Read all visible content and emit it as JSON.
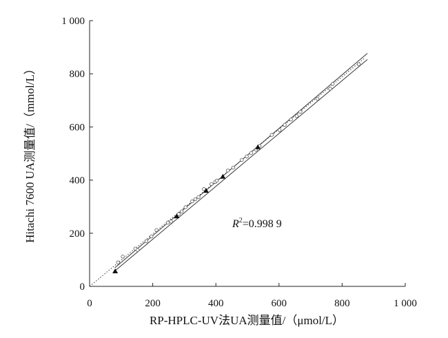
{
  "chart_data": {
    "type": "scatter",
    "title": "",
    "xlabel": "RP-HPLC-UV法UA测量值/（μmol/L）",
    "ylabel": "Hitachi 7600 UA测量值/（mmol/L）",
    "xlim": [
      0,
      1000
    ],
    "ylim": [
      0,
      1000
    ],
    "x_ticks": [
      0,
      200,
      400,
      600,
      800,
      1000
    ],
    "y_ticks": [
      0,
      200,
      400,
      600,
      800,
      1000
    ],
    "x_tick_labels": [
      "0",
      "200",
      "400",
      "600",
      "800",
      "1 000"
    ],
    "y_tick_labels": [
      "0",
      "200",
      "400",
      "600",
      "800",
      "1 000"
    ],
    "annotation": {
      "prefix": "R",
      "sup": "2",
      "value": "=0.998 9"
    },
    "grid": false,
    "legend": "none",
    "fit_line": {
      "style": "dotted",
      "x": [
        0,
        870
      ],
      "y": [
        0,
        858
      ]
    },
    "upper_limit": {
      "style": "solid",
      "x": [
        80,
        880
      ],
      "y": [
        70,
        877
      ]
    },
    "lower_limit": {
      "style": "solid",
      "x": [
        80,
        880
      ],
      "y": [
        58,
        854
      ]
    },
    "series": [
      {
        "marker": "open-circle",
        "x": [
          90,
          105,
          145,
          152,
          180,
          196,
          212,
          248,
          258,
          282,
          292,
          304,
          325,
          335,
          345,
          362,
          386,
          398,
          403,
          438,
          455,
          482,
          498,
          512,
          527,
          538,
          577,
          602,
          618,
          638,
          656,
          668,
          722,
          762,
          770,
          853
        ],
        "y": [
          90,
          112,
          142,
          137,
          170,
          188,
          212,
          240,
          244,
          272,
          282,
          298,
          320,
          328,
          336,
          366,
          385,
          393,
          398,
          436,
          447,
          476,
          489,
          502,
          515,
          528,
          570,
          588,
          608,
          628,
          641,
          657,
          706,
          744,
          762,
          836
        ]
      },
      {
        "marker": "filled-triangle",
        "x": [
          81,
          276,
          369,
          422,
          533
        ],
        "y": [
          57,
          264,
          360,
          413,
          524
        ]
      }
    ]
  }
}
